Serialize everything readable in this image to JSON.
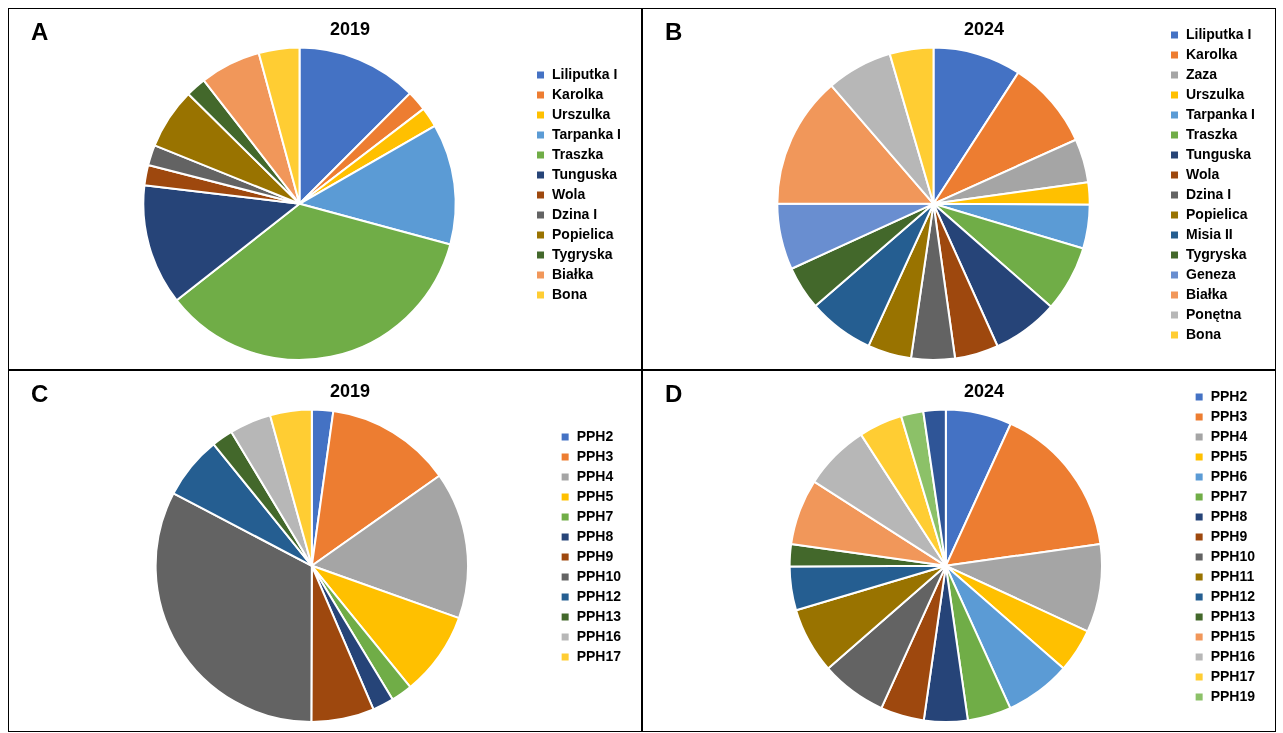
{
  "chart_data": [
    {
      "type": "pie",
      "title": "2019",
      "annotations": [
        "A"
      ],
      "legend": "right",
      "categories": [
        "Liliputka I",
        "Karolka",
        "Urszulka",
        "Tarpanka I",
        "Traszka",
        "Tunguska",
        "Wola",
        "Dzina I",
        "Popielica",
        "Tygryska",
        "Białka",
        "Bona"
      ],
      "values": [
        12.5,
        2.1,
        2.1,
        12.5,
        35.2,
        12.5,
        2.1,
        2.1,
        6.3,
        2.1,
        6.3,
        4.2
      ],
      "colors": [
        "#4472c4",
        "#ed7d31",
        "#ffc000",
        "#5b9bd5",
        "#70ad47",
        "#264478",
        "#9e480e",
        "#636363",
        "#997300",
        "#43682b",
        "#f1975a",
        "#ffcd33"
      ]
    },
    {
      "type": "pie",
      "title": "2024",
      "annotations": [
        "B"
      ],
      "legend": "right",
      "categories": [
        "Liliputka I",
        "Karolka",
        "Zaza",
        "Urszulka",
        "Tarpanka I",
        "Traszka",
        "Tunguska",
        "Wola",
        "Dzina I",
        "Popielica",
        "Misia II",
        "Tygryska",
        "Geneza",
        "Białka",
        "Ponętna",
        "Bona"
      ],
      "values": [
        9.1,
        9.1,
        4.5,
        2.3,
        4.5,
        6.8,
        6.8,
        4.5,
        4.5,
        4.5,
        6.8,
        4.5,
        6.8,
        13.6,
        6.8,
        4.5
      ],
      "colors": [
        "#4472c4",
        "#ed7d31",
        "#a5a5a5",
        "#ffc000",
        "#5b9bd5",
        "#70ad47",
        "#264478",
        "#9e480e",
        "#636363",
        "#997300",
        "#255e91",
        "#43682b",
        "#698ed0",
        "#f1975a",
        "#b7b7b7",
        "#ffcd33"
      ]
    },
    {
      "type": "pie",
      "title": "2019",
      "annotations": [
        "C"
      ],
      "legend": "right",
      "categories": [
        "PPH2",
        "PPH3",
        "PPH4",
        "PPH5",
        "PPH7",
        "PPH8",
        "PPH9",
        "PPH10",
        "PPH12",
        "PPH13",
        "PPH16",
        "PPH17"
      ],
      "values": [
        2.2,
        13,
        15.2,
        8.7,
        2.2,
        2.2,
        6.5,
        32.6,
        6.5,
        2.2,
        4.3,
        4.3
      ],
      "colors": [
        "#4472c4",
        "#ed7d31",
        "#a5a5a5",
        "#ffc000",
        "#70ad47",
        "#264478",
        "#9e480e",
        "#636363",
        "#255e91",
        "#43682b",
        "#b7b7b7",
        "#ffcd33"
      ]
    },
    {
      "type": "pie",
      "title": "2024",
      "annotations": [
        "D"
      ],
      "legend": "right",
      "categories": [
        "PPH2",
        "PPH3",
        "PPH4",
        "PPH5",
        "PPH6",
        "PPH7",
        "PPH8",
        "PPH9",
        "PPH10",
        "PPH11",
        "PPH12",
        "PPH13",
        "PPH15",
        "PPH16",
        "PPH17",
        "PPH19",
        null
      ],
      "values": [
        6.8,
        15.9,
        9.1,
        4.5,
        6.8,
        4.5,
        4.5,
        4.5,
        6.8,
        6.8,
        4.5,
        2.3,
        6.8,
        6.8,
        4.5,
        2.3,
        2.3
      ],
      "colors": [
        "#4472c4",
        "#ed7d31",
        "#a5a5a5",
        "#ffc000",
        "#5b9bd5",
        "#70ad47",
        "#264478",
        "#9e480e",
        "#636363",
        "#997300",
        "#255e91",
        "#43682b",
        "#f1975a",
        "#b7b7b7",
        "#ffcd33",
        "#8cc168",
        "#2f5597"
      ]
    }
  ]
}
